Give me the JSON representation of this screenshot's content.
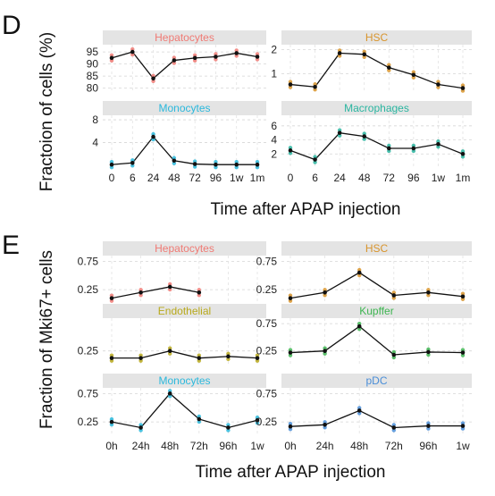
{
  "figure": {
    "panel_d_letter": "D",
    "panel_e_letter": "E",
    "panel_d_ylabel": "Fractoion of cells (%)",
    "panel_d_xlabel": "Time after APAP injection",
    "panel_e_ylabel": "Fraction of Mki67+ cells",
    "panel_e_xlabel": "Time after APAP injection"
  },
  "chart_data": [
    {
      "type": "line",
      "panel": "D",
      "title": "Hepatocytes",
      "color": "#f07a74",
      "x": [
        "0",
        "6",
        "24",
        "48",
        "72",
        "96",
        "1w",
        "1m"
      ],
      "y": [
        92.5,
        95,
        84,
        91.5,
        92.5,
        93,
        94.5,
        93
      ],
      "ylim": [
        78,
        98
      ],
      "yticks": [
        80,
        85,
        90,
        95
      ],
      "xticks": [],
      "grid": true
    },
    {
      "type": "line",
      "panel": "D",
      "title": "HSC",
      "color": "#d8942c",
      "x": [
        "0",
        "6",
        "24",
        "48",
        "72",
        "96",
        "1w",
        "1m"
      ],
      "y": [
        0.55,
        0.45,
        1.85,
        1.8,
        1.25,
        0.95,
        0.55,
        0.4
      ],
      "ylim": [
        0.2,
        2.2
      ],
      "yticks": [
        1,
        2
      ],
      "xticks": [],
      "grid": true
    },
    {
      "type": "line",
      "panel": "D",
      "title": "Monocytes",
      "color": "#2ab8dc",
      "x": [
        "0",
        "6",
        "24",
        "48",
        "72",
        "96",
        "1w",
        "1m"
      ],
      "y": [
        0.1,
        0.4,
        5,
        0.8,
        0.2,
        0.1,
        0.1,
        0.1
      ],
      "ylim": [
        -0.5,
        8.8
      ],
      "yticks": [
        4,
        8
      ],
      "xticks": [
        "0",
        "6",
        "24",
        "48",
        "72",
        "96",
        "1w",
        "1m"
      ],
      "grid": true
    },
    {
      "type": "line",
      "panel": "D",
      "title": "Macrophages",
      "color": "#2ab5a0",
      "x": [
        "0",
        "6",
        "24",
        "48",
        "72",
        "96",
        "1w",
        "1m"
      ],
      "y": [
        2.5,
        1.2,
        5,
        4.5,
        2.8,
        2.8,
        3.4,
        2
      ],
      "ylim": [
        0,
        7.5
      ],
      "yticks": [
        2,
        4,
        6
      ],
      "xticks": [
        "0",
        "6",
        "24",
        "48",
        "72",
        "96",
        "1w",
        "1m"
      ],
      "grid": true
    },
    {
      "type": "line",
      "panel": "E",
      "title": "Hepatocytes",
      "color": "#f07a74",
      "x": [
        "0h",
        "24h",
        "48h",
        "72h",
        "96h",
        "1w"
      ],
      "y": [
        0.1,
        0.2,
        0.3,
        0.2,
        null,
        null
      ],
      "ylim": [
        0,
        0.85
      ],
      "yticks": [
        0.25,
        0.75
      ],
      "xticks": [],
      "grid": true
    },
    {
      "type": "line",
      "panel": "E",
      "title": "HSC",
      "color": "#d8942c",
      "x": [
        "0h",
        "24h",
        "48h",
        "72h",
        "96h",
        "1w"
      ],
      "y": [
        0.1,
        0.2,
        0.55,
        0.15,
        0.2,
        0.13
      ],
      "ylim": [
        0,
        0.85
      ],
      "yticks": [
        0.25,
        0.75
      ],
      "xticks": [],
      "grid": true
    },
    {
      "type": "line",
      "panel": "E",
      "title": "Endothelial",
      "color": "#b8a91c",
      "x": [
        "0h",
        "24h",
        "48h",
        "72h",
        "96h",
        "1w"
      ],
      "y": [
        0.12,
        0.12,
        0.25,
        0.12,
        0.15,
        0.12
      ],
      "ylim": [
        0,
        0.85
      ],
      "yticks": [
        0.25
      ],
      "xticks": [],
      "grid": true
    },
    {
      "type": "line",
      "panel": "E",
      "title": "Kupffer",
      "color": "#3fb552",
      "x": [
        "0h",
        "24h",
        "48h",
        "72h",
        "96h",
        "1w"
      ],
      "y": [
        0.22,
        0.25,
        0.7,
        0.18,
        0.23,
        0.22
      ],
      "ylim": [
        0,
        0.85
      ],
      "yticks": [
        0.25,
        0.75
      ],
      "xticks": [],
      "grid": true
    },
    {
      "type": "line",
      "panel": "E",
      "title": "Monocytes",
      "color": "#2ab8dc",
      "x": [
        "0h",
        "24h",
        "48h",
        "72h",
        "96h",
        "1w"
      ],
      "y": [
        0.25,
        0.15,
        0.75,
        0.3,
        0.15,
        0.28
      ],
      "ylim": [
        0,
        0.85
      ],
      "yticks": [
        0.25,
        0.75
      ],
      "xticks": [
        "0h",
        "24h",
        "48h",
        "72h",
        "96h",
        "1w"
      ],
      "grid": true
    },
    {
      "type": "line",
      "panel": "E",
      "title": "pDC",
      "color": "#4a8ed8",
      "x": [
        "0h",
        "24h",
        "48h",
        "72h",
        "96h",
        "1w"
      ],
      "y": [
        0.17,
        0.2,
        0.45,
        0.15,
        0.18,
        0.18
      ],
      "ylim": [
        0,
        0.85
      ],
      "yticks": [
        0.25,
        0.75
      ],
      "xticks": [
        "0h",
        "24h",
        "48h",
        "72h",
        "96h",
        "1w"
      ],
      "grid": true
    }
  ]
}
